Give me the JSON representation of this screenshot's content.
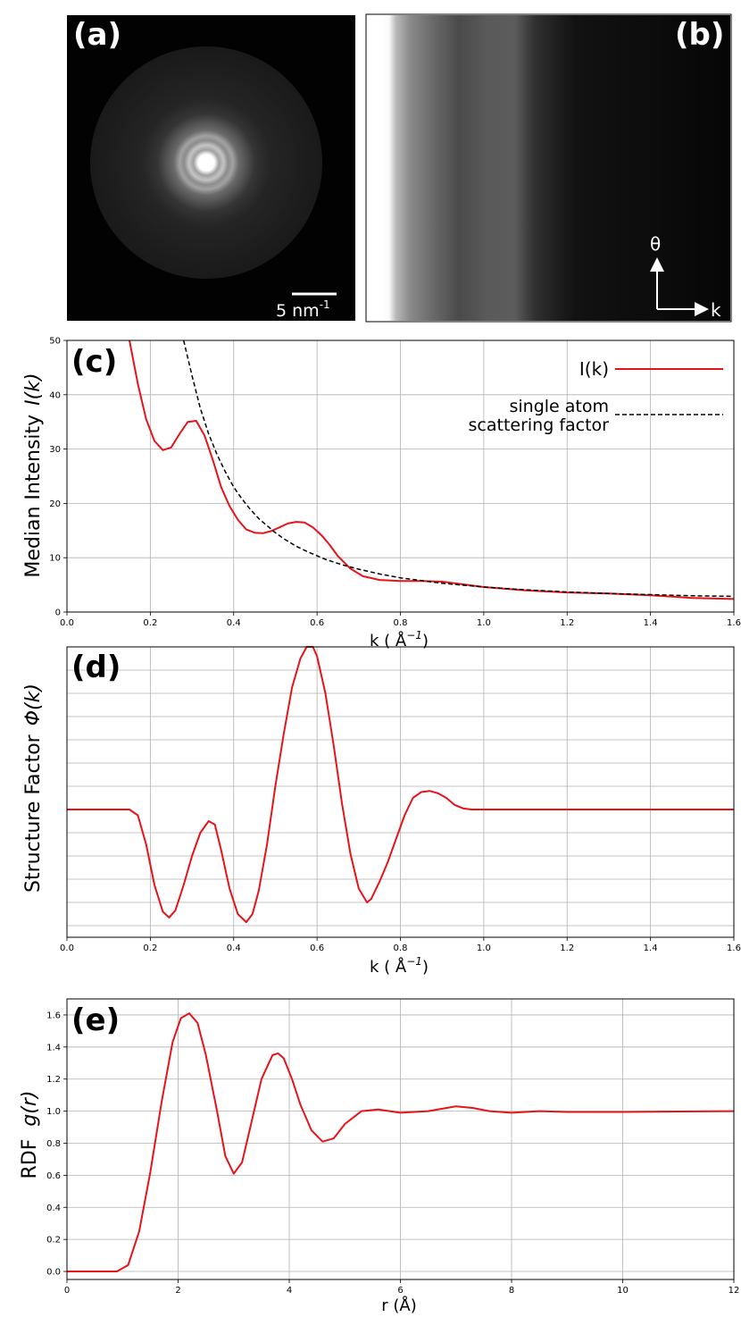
{
  "panels": {
    "a": {
      "label": "(a)",
      "scalebar_text": "5 nm",
      "scalebar_sup": "-1"
    },
    "b": {
      "label": "(b)",
      "axis_theta": "θ",
      "axis_k": "k"
    }
  },
  "chart_data": [
    {
      "id": "c",
      "type": "line",
      "panel_label": "(c)",
      "xlabel": "k ( Å",
      "xlabel_sup": "−1",
      "xlabel_end": ")",
      "ylabel": "Median Intensity",
      "ylabel_math": "I(k)",
      "xlim": [
        0,
        1.6
      ],
      "ylim": [
        0,
        50
      ],
      "xticks": [
        "0.0",
        "0.2",
        "0.4",
        "0.6",
        "0.8",
        "1.0",
        "1.2",
        "1.4",
        "1.6"
      ],
      "yticks": [
        "0",
        "10",
        "20",
        "30",
        "40",
        "50"
      ],
      "grid": true,
      "legend_position": "top-right",
      "series": [
        {
          "name": "I(k)",
          "style": "solid",
          "color": "#e8131a",
          "x": [
            0.15,
            0.17,
            0.19,
            0.21,
            0.23,
            0.25,
            0.27,
            0.29,
            0.31,
            0.33,
            0.35,
            0.37,
            0.39,
            0.41,
            0.43,
            0.45,
            0.47,
            0.49,
            0.51,
            0.53,
            0.55,
            0.57,
            0.59,
            0.61,
            0.63,
            0.65,
            0.68,
            0.71,
            0.75,
            0.8,
            0.85,
            0.9,
            0.95,
            1.0,
            1.1,
            1.2,
            1.3,
            1.4,
            1.5,
            1.6
          ],
          "y": [
            50.0,
            42.0,
            35.5,
            31.5,
            29.8,
            30.3,
            32.8,
            35.0,
            35.2,
            32.5,
            28.0,
            23.0,
            19.5,
            17.0,
            15.2,
            14.6,
            14.5,
            14.9,
            15.6,
            16.3,
            16.6,
            16.5,
            15.6,
            14.2,
            12.4,
            10.3,
            8.0,
            6.6,
            5.9,
            5.7,
            5.7,
            5.6,
            5.1,
            4.6,
            4.0,
            3.6,
            3.4,
            3.1,
            2.6,
            2.4
          ]
        },
        {
          "name_lines": [
            "single atom",
            "scattering factor"
          ],
          "style": "dashed",
          "color": "#000000",
          "x": [
            0.28,
            0.3,
            0.32,
            0.34,
            0.36,
            0.38,
            0.4,
            0.42,
            0.44,
            0.46,
            0.48,
            0.5,
            0.52,
            0.55,
            0.58,
            0.62,
            0.66,
            0.7,
            0.75,
            0.8,
            0.9,
            1.0,
            1.1,
            1.2,
            1.3,
            1.4,
            1.5,
            1.6
          ],
          "y": [
            50.0,
            43.5,
            37.5,
            32.8,
            29.0,
            25.8,
            23.0,
            20.8,
            18.9,
            17.2,
            15.9,
            14.6,
            13.5,
            12.1,
            11.0,
            9.7,
            8.7,
            7.9,
            7.0,
            6.3,
            5.3,
            4.6,
            4.1,
            3.7,
            3.4,
            3.2,
            3.0,
            2.9
          ]
        }
      ]
    },
    {
      "id": "d",
      "type": "line",
      "panel_label": "(d)",
      "xlabel": "k ( Å",
      "xlabel_sup": "−1",
      "xlabel_end": ")",
      "ylabel": "Structure Factor",
      "ylabel_math": "Φ(k)",
      "xlim": [
        0,
        1.6
      ],
      "ylim": [
        -1.1,
        1.4
      ],
      "xticks": [
        "0.0",
        "0.2",
        "0.4",
        "0.6",
        "0.8",
        "1.0",
        "1.2",
        "1.4",
        "1.6"
      ],
      "yticks": [],
      "grid": true,
      "series": [
        {
          "style": "solid",
          "color": "#e8131a",
          "x": [
            0.0,
            0.15,
            0.17,
            0.19,
            0.21,
            0.23,
            0.245,
            0.26,
            0.28,
            0.3,
            0.32,
            0.34,
            0.355,
            0.37,
            0.39,
            0.41,
            0.43,
            0.445,
            0.46,
            0.48,
            0.5,
            0.52,
            0.54,
            0.56,
            0.575,
            0.59,
            0.6,
            0.62,
            0.64,
            0.66,
            0.68,
            0.7,
            0.72,
            0.73,
            0.75,
            0.77,
            0.79,
            0.81,
            0.83,
            0.85,
            0.87,
            0.89,
            0.91,
            0.93,
            0.95,
            0.97,
            1.0,
            1.2,
            1.4,
            1.6
          ],
          "y": [
            0.0,
            0.0,
            -0.05,
            -0.3,
            -0.65,
            -0.88,
            -0.93,
            -0.87,
            -0.65,
            -0.4,
            -0.2,
            -0.1,
            -0.13,
            -0.35,
            -0.68,
            -0.9,
            -0.97,
            -0.9,
            -0.7,
            -0.3,
            0.2,
            0.65,
            1.05,
            1.3,
            1.41,
            1.4,
            1.32,
            1.0,
            0.55,
            0.05,
            -0.38,
            -0.68,
            -0.8,
            -0.77,
            -0.62,
            -0.45,
            -0.25,
            -0.05,
            0.1,
            0.15,
            0.16,
            0.14,
            0.1,
            0.04,
            0.01,
            0.0,
            0.0,
            0.0,
            0.0,
            0.0
          ]
        }
      ]
    },
    {
      "id": "e",
      "type": "line",
      "panel_label": "(e)",
      "xlabel": "r (Å)",
      "ylabel": "RDF",
      "ylabel_math": "g(r)",
      "xlim": [
        0,
        12
      ],
      "ylim": [
        -0.05,
        1.7
      ],
      "xticks": [
        "0",
        "2",
        "4",
        "6",
        "8",
        "10",
        "12"
      ],
      "yticks": [
        "0.0",
        "0.2",
        "0.4",
        "0.6",
        "0.8",
        "1.0",
        "1.2",
        "1.4",
        "1.6"
      ],
      "grid": true,
      "series": [
        {
          "style": "solid",
          "color": "#e8131a",
          "x": [
            0.0,
            0.9,
            1.1,
            1.3,
            1.5,
            1.7,
            1.9,
            2.05,
            2.2,
            2.35,
            2.5,
            2.7,
            2.85,
            3.0,
            3.15,
            3.3,
            3.5,
            3.7,
            3.8,
            3.9,
            4.05,
            4.2,
            4.4,
            4.6,
            4.8,
            5.0,
            5.3,
            5.6,
            6.0,
            6.5,
            7.0,
            7.3,
            7.6,
            8.0,
            8.5,
            9.0,
            10.0,
            11.0,
            12.0
          ],
          "y": [
            0.0,
            0.0,
            0.04,
            0.25,
            0.62,
            1.05,
            1.43,
            1.58,
            1.61,
            1.55,
            1.35,
            1.0,
            0.72,
            0.61,
            0.68,
            0.9,
            1.2,
            1.35,
            1.36,
            1.33,
            1.2,
            1.04,
            0.88,
            0.81,
            0.83,
            0.92,
            1.0,
            1.01,
            0.99,
            1.0,
            1.03,
            1.02,
            1.0,
            0.99,
            1.0,
            0.995,
            0.995,
            0.998,
            1.0
          ]
        }
      ]
    }
  ]
}
